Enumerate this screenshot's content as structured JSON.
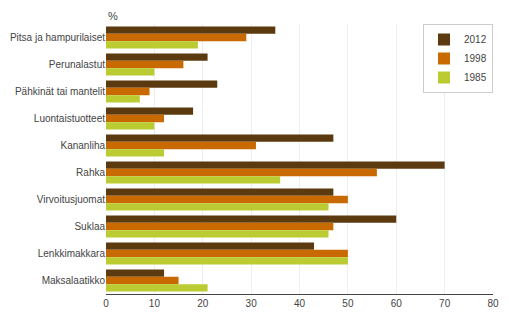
{
  "chart_data": {
    "type": "bar",
    "orientation": "horizontal",
    "ylabel": "%",
    "categories": [
      "Pitsa ja hampurilaiset",
      "Perunalastut",
      "Pähkinät tai mantelit",
      "Luontaistuotteet",
      "Kananliha",
      "Rahka",
      "Virvoitusjuomat",
      "Suklaa",
      "Lenkkimakkara",
      "Maksalaatikko"
    ],
    "series": [
      {
        "name": "2012",
        "color": "#5B3A10",
        "values": [
          35,
          21,
          23,
          18,
          47,
          70,
          47,
          60,
          43,
          12
        ]
      },
      {
        "name": "1998",
        "color": "#C96A00",
        "values": [
          29,
          16,
          9,
          12,
          31,
          56,
          50,
          47,
          50,
          15
        ]
      },
      {
        "name": "1985",
        "color": "#BBCC33",
        "values": [
          19,
          10,
          7,
          10,
          12,
          36,
          46,
          46,
          50,
          21
        ]
      }
    ],
    "xlim": [
      0,
      80
    ],
    "xticks": [
      0,
      10,
      20,
      30,
      40,
      50,
      60,
      70,
      80
    ],
    "grid": true,
    "legend": "upper right"
  }
}
